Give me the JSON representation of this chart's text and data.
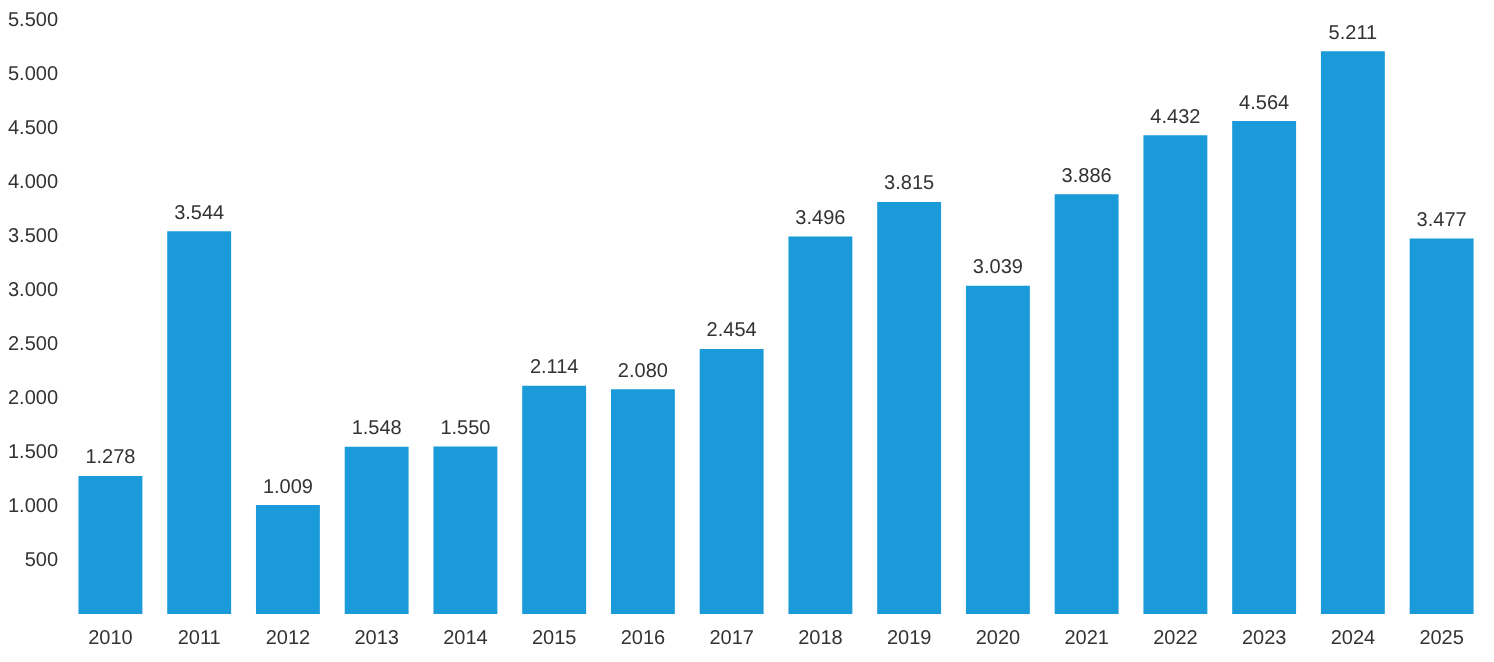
{
  "chart_data": {
    "type": "bar",
    "categories": [
      "2010",
      "2011",
      "2012",
      "2013",
      "2014",
      "2015",
      "2016",
      "2017",
      "2018",
      "2019",
      "2020",
      "2021",
      "2022",
      "2023",
      "2024",
      "2025"
    ],
    "values": [
      1278,
      3544,
      1009,
      1548,
      1550,
      2114,
      2080,
      2454,
      3496,
      3815,
      3039,
      3886,
      4432,
      4564,
      5211,
      3477
    ],
    "value_labels": [
      "1.278",
      "3.544",
      "1.009",
      "1.548",
      "1.550",
      "2.114",
      "2.080",
      "2.454",
      "3.496",
      "3.815",
      "3.039",
      "3.886",
      "4.432",
      "4.564",
      "5.211",
      "3.477"
    ],
    "color": "#1a9ad8",
    "ylim": [
      0,
      5500
    ],
    "yticks": [
      {
        "value": 500,
        "label": "500"
      },
      {
        "value": 1000,
        "label": "1.000"
      },
      {
        "value": 1500,
        "label": "1.500"
      },
      {
        "value": 2000,
        "label": "2.000"
      },
      {
        "value": 2500,
        "label": "2.500"
      },
      {
        "value": 3000,
        "label": "3.000"
      },
      {
        "value": 3500,
        "label": "3.500"
      },
      {
        "value": 4000,
        "label": "4.000"
      },
      {
        "value": 4500,
        "label": "4.500"
      },
      {
        "value": 5000,
        "label": "5.000"
      },
      {
        "value": 5500,
        "label": "5.500"
      }
    ],
    "grid": false,
    "legend": false
  }
}
